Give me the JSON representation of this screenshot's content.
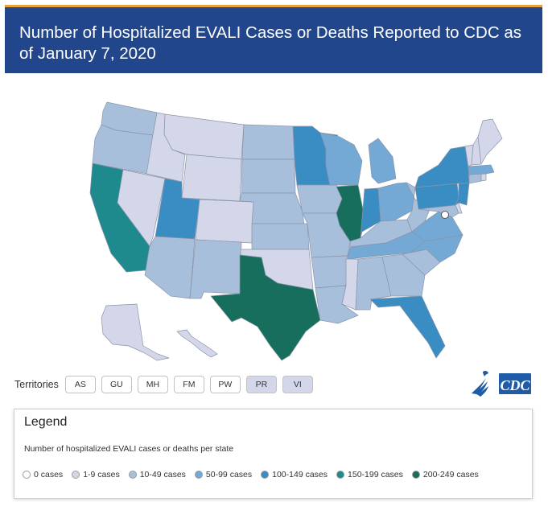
{
  "header": {
    "title": "Number of Hospitalized EVALI Cases or Deaths Reported to CDC as of January 7, 2020",
    "accent_color": "#e8a23d",
    "background_color": "#22468b"
  },
  "territories": {
    "label": "Territories",
    "items": [
      {
        "code": "AS",
        "color": "#ffffff"
      },
      {
        "code": "GU",
        "color": "#ffffff"
      },
      {
        "code": "MH",
        "color": "#ffffff"
      },
      {
        "code": "FM",
        "color": "#ffffff"
      },
      {
        "code": "PW",
        "color": "#ffffff"
      },
      {
        "code": "PR",
        "color": "#d4d6ea"
      },
      {
        "code": "VI",
        "color": "#d4d6ea"
      }
    ]
  },
  "logo": {
    "text": "CDC",
    "icon": "hhs-eagle-icon"
  },
  "legend": {
    "title": "Legend",
    "subtitle": "Number of hospitalized EVALI cases or deaths per state",
    "items": [
      {
        "label": "0 cases",
        "color": "#ffffff"
      },
      {
        "label": "1-9 cases",
        "color": "#d4d6ea"
      },
      {
        "label": "10-49 cases",
        "color": "#a8bfdb"
      },
      {
        "label": "50-99 cases",
        "color": "#73a9d4"
      },
      {
        "label": "100-149 cases",
        "color": "#3a8dc3"
      },
      {
        "label": "150-199 cases",
        "color": "#1f8a8d"
      },
      {
        "label": "200-249 cases",
        "color": "#176e5c"
      }
    ]
  },
  "map_data": {
    "states": [
      {
        "id": "WA",
        "bin": 2
      },
      {
        "id": "OR",
        "bin": 2
      },
      {
        "id": "CA",
        "bin": 5
      },
      {
        "id": "ID",
        "bin": 1
      },
      {
        "id": "NV",
        "bin": 1
      },
      {
        "id": "MT",
        "bin": 1
      },
      {
        "id": "WY",
        "bin": 1
      },
      {
        "id": "UT",
        "bin": 4
      },
      {
        "id": "AZ",
        "bin": 2
      },
      {
        "id": "CO",
        "bin": 1
      },
      {
        "id": "NM",
        "bin": 2
      },
      {
        "id": "ND",
        "bin": 2
      },
      {
        "id": "SD",
        "bin": 2
      },
      {
        "id": "NE",
        "bin": 2
      },
      {
        "id": "KS",
        "bin": 2
      },
      {
        "id": "OK",
        "bin": 1
      },
      {
        "id": "TX",
        "bin": 6
      },
      {
        "id": "MN",
        "bin": 4
      },
      {
        "id": "IA",
        "bin": 2
      },
      {
        "id": "MO",
        "bin": 2
      },
      {
        "id": "AR",
        "bin": 2
      },
      {
        "id": "LA",
        "bin": 2
      },
      {
        "id": "WI",
        "bin": 3
      },
      {
        "id": "IL",
        "bin": 6
      },
      {
        "id": "MI",
        "bin": 3
      },
      {
        "id": "IN",
        "bin": 4
      },
      {
        "id": "OH",
        "bin": 3
      },
      {
        "id": "KY",
        "bin": 2
      },
      {
        "id": "TN",
        "bin": 3
      },
      {
        "id": "MS",
        "bin": 1
      },
      {
        "id": "AL",
        "bin": 2
      },
      {
        "id": "GA",
        "bin": 2
      },
      {
        "id": "FL",
        "bin": 4
      },
      {
        "id": "SC",
        "bin": 2
      },
      {
        "id": "NC",
        "bin": 3
      },
      {
        "id": "VA",
        "bin": 3
      },
      {
        "id": "WV",
        "bin": 2
      },
      {
        "id": "PA",
        "bin": 4
      },
      {
        "id": "NY",
        "bin": 4
      },
      {
        "id": "NJ",
        "bin": 4
      },
      {
        "id": "MD",
        "bin": 2
      },
      {
        "id": "DE",
        "bin": 1
      },
      {
        "id": "DC",
        "bin": 0
      },
      {
        "id": "CT",
        "bin": 2
      },
      {
        "id": "RI",
        "bin": 1
      },
      {
        "id": "MA",
        "bin": 3
      },
      {
        "id": "VT",
        "bin": 1
      },
      {
        "id": "NH",
        "bin": 1
      },
      {
        "id": "ME",
        "bin": 1
      },
      {
        "id": "AK",
        "bin": 1
      },
      {
        "id": "HI",
        "bin": 1
      }
    ]
  }
}
